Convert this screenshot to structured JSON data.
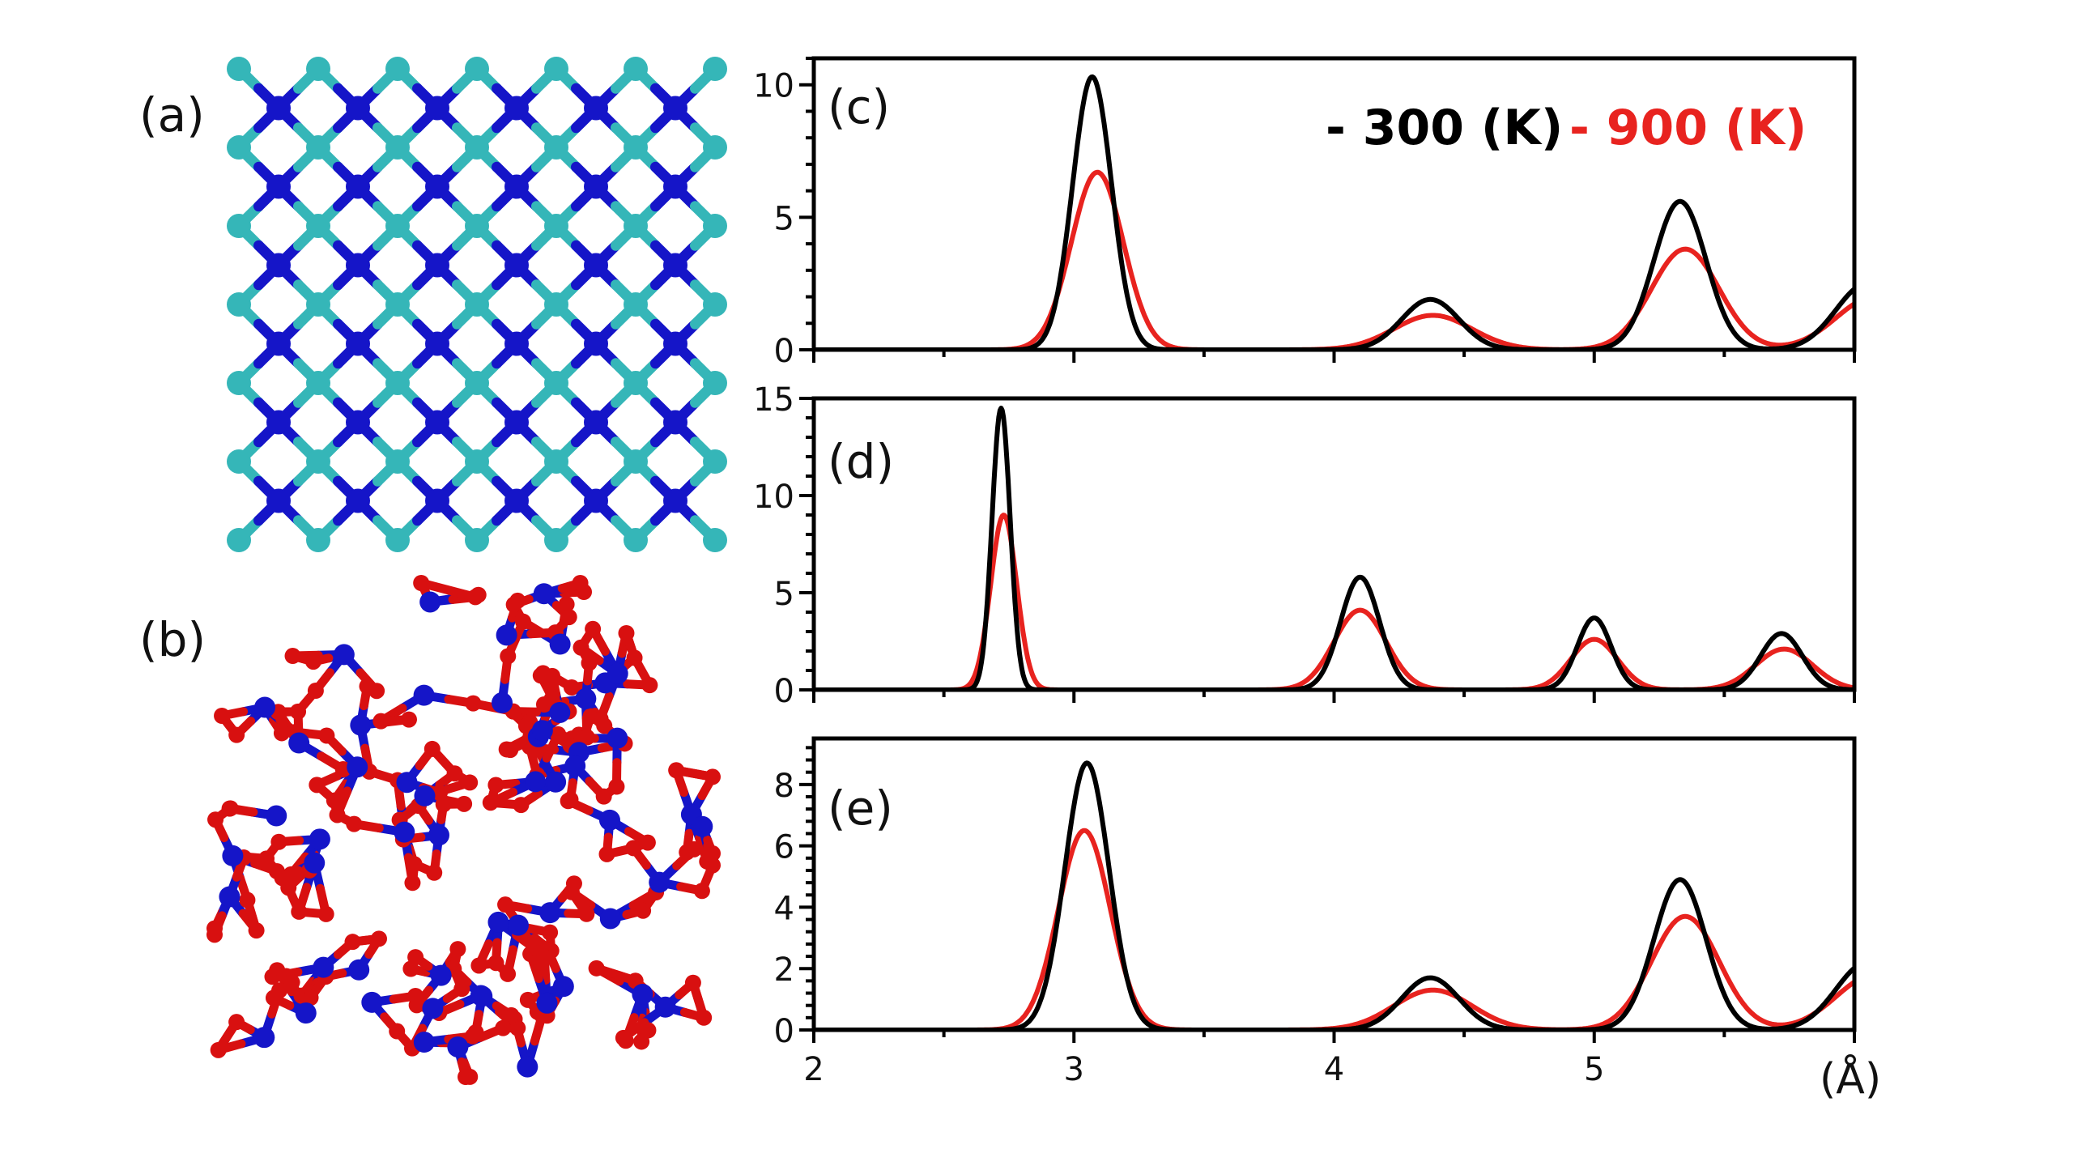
{
  "panels": {
    "a": {
      "label": "(a)"
    },
    "b": {
      "label": "(b)"
    }
  },
  "legend": {
    "placement": "top-right of panel (c)",
    "items": [
      {
        "text": "- 300 (K)",
        "color": "#000000"
      },
      {
        "text": "- 900 (K)",
        "color": "#e8231f"
      }
    ]
  },
  "colors": {
    "atom_cyan": "#35b6b8",
    "atom_blue": "#1515c8",
    "atom_red": "#d81010",
    "series_300K": "#000000",
    "series_900K": "#e8231f"
  },
  "x_unit_label": "(Å)",
  "chart_data": [
    {
      "type": "line",
      "panel_label": "(c)",
      "xlim": [
        2,
        6
      ],
      "ylim": [
        0,
        11
      ],
      "x_ticks": [
        2,
        3,
        4,
        5
      ],
      "x_tick_labels_shown": false,
      "y_ticks": [
        0,
        5,
        10
      ],
      "y_tick_labels": [
        "0",
        "5",
        "10"
      ],
      "grid": false,
      "series": [
        {
          "name": "300 (K)",
          "color": "#000000",
          "peaks": [
            {
              "x": 3.07,
              "height": 10.3,
              "width": 0.075
            },
            {
              "x": 4.37,
              "height": 1.9,
              "width": 0.11
            },
            {
              "x": 5.33,
              "height": 5.6,
              "width": 0.1
            },
            {
              "x": 6.05,
              "height": 2.5,
              "width": 0.12
            }
          ]
        },
        {
          "name": "900 (K)",
          "color": "#e8231f",
          "peaks": [
            {
              "x": 3.09,
              "height": 6.7,
              "width": 0.1
            },
            {
              "x": 4.38,
              "height": 1.3,
              "width": 0.15
            },
            {
              "x": 5.35,
              "height": 3.8,
              "width": 0.13
            },
            {
              "x": 6.08,
              "height": 2.0,
              "width": 0.15
            }
          ]
        }
      ]
    },
    {
      "type": "line",
      "panel_label": "(d)",
      "xlim": [
        2,
        6
      ],
      "ylim": [
        0,
        15
      ],
      "x_ticks": [
        2,
        3,
        4,
        5
      ],
      "x_tick_labels_shown": false,
      "y_ticks": [
        0,
        5,
        10,
        15
      ],
      "y_tick_labels": [
        "0",
        "5",
        "10",
        "15"
      ],
      "grid": false,
      "series": [
        {
          "name": "300 (K)",
          "color": "#000000",
          "peaks": [
            {
              "x": 2.72,
              "height": 14.5,
              "width": 0.035
            },
            {
              "x": 4.1,
              "height": 5.8,
              "width": 0.075
            },
            {
              "x": 5.0,
              "height": 3.7,
              "width": 0.065
            },
            {
              "x": 5.72,
              "height": 2.9,
              "width": 0.08
            }
          ]
        },
        {
          "name": "900 (K)",
          "color": "#e8231f",
          "peaks": [
            {
              "x": 2.73,
              "height": 9.0,
              "width": 0.05
            },
            {
              "x": 4.1,
              "height": 4.1,
              "width": 0.1
            },
            {
              "x": 5.0,
              "height": 2.6,
              "width": 0.09
            },
            {
              "x": 5.73,
              "height": 2.1,
              "width": 0.11
            }
          ]
        }
      ]
    },
    {
      "type": "line",
      "panel_label": "(e)",
      "xlim": [
        2,
        6
      ],
      "ylim": [
        0,
        9.5
      ],
      "x_ticks": [
        2,
        3,
        4,
        5
      ],
      "x_tick_labels": [
        "2",
        "3",
        "4",
        "5"
      ],
      "x_tick_labels_shown": true,
      "y_ticks": [
        0,
        2,
        4,
        6,
        8
      ],
      "y_tick_labels": [
        "0",
        "2",
        "4",
        "6",
        "8"
      ],
      "grid": false,
      "series": [
        {
          "name": "300 (K)",
          "color": "#000000",
          "peaks": [
            {
              "x": 3.05,
              "height": 8.7,
              "width": 0.085
            },
            {
              "x": 4.37,
              "height": 1.7,
              "width": 0.11
            },
            {
              "x": 5.33,
              "height": 4.9,
              "width": 0.1
            },
            {
              "x": 6.05,
              "height": 2.2,
              "width": 0.12
            }
          ]
        },
        {
          "name": "900 (K)",
          "color": "#e8231f",
          "peaks": [
            {
              "x": 3.04,
              "height": 6.5,
              "width": 0.1
            },
            {
              "x": 4.38,
              "height": 1.3,
              "width": 0.15
            },
            {
              "x": 5.35,
              "height": 3.7,
              "width": 0.13
            },
            {
              "x": 6.08,
              "height": 1.8,
              "width": 0.15
            }
          ]
        }
      ]
    }
  ]
}
